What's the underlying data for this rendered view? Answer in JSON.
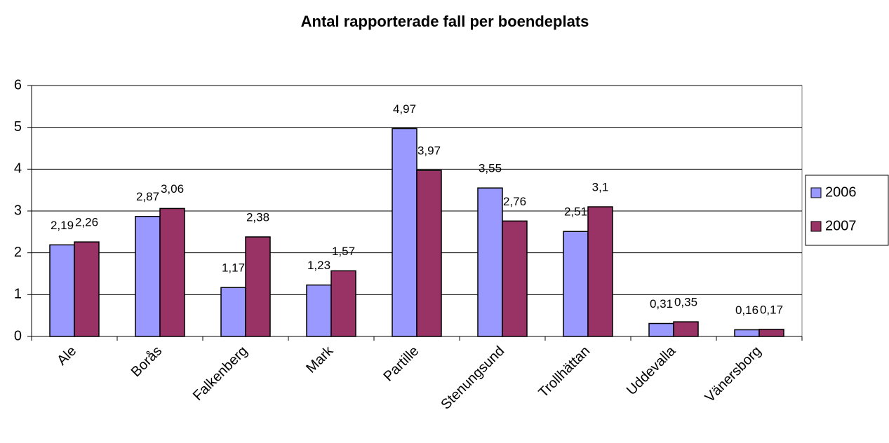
{
  "chart_data": {
    "type": "bar",
    "title": "Antal rapporterade fall per boendeplats",
    "categories": [
      "Ale",
      "Borås",
      "Falkenberg",
      "Mark",
      "Partille",
      "Stenungsund",
      "Trollhättan",
      "Uddevalla",
      "Vänersborg"
    ],
    "series": [
      {
        "name": "2006",
        "color": "#9999ff",
        "values": [
          2.19,
          2.87,
          1.17,
          1.23,
          4.97,
          3.55,
          2.51,
          0.31,
          0.16
        ],
        "value_labels": [
          "2,19",
          "2,87",
          "1,17",
          "1,23",
          "4,97",
          "3,55",
          "2,51",
          "0,31",
          "0,16"
        ]
      },
      {
        "name": "2007",
        "color": "#993366",
        "values": [
          2.26,
          3.06,
          2.38,
          1.57,
          3.97,
          2.76,
          3.1,
          0.35,
          0.17
        ],
        "value_labels": [
          "2,26",
          "3,06",
          "2,38",
          "1,57",
          "3,97",
          "2,76",
          "3,1",
          "0,35",
          "0,17"
        ]
      }
    ],
    "ylim": [
      0,
      6
    ],
    "yticks": [
      0,
      1,
      2,
      3,
      4,
      5,
      6
    ],
    "grid": true,
    "legend": "right"
  }
}
